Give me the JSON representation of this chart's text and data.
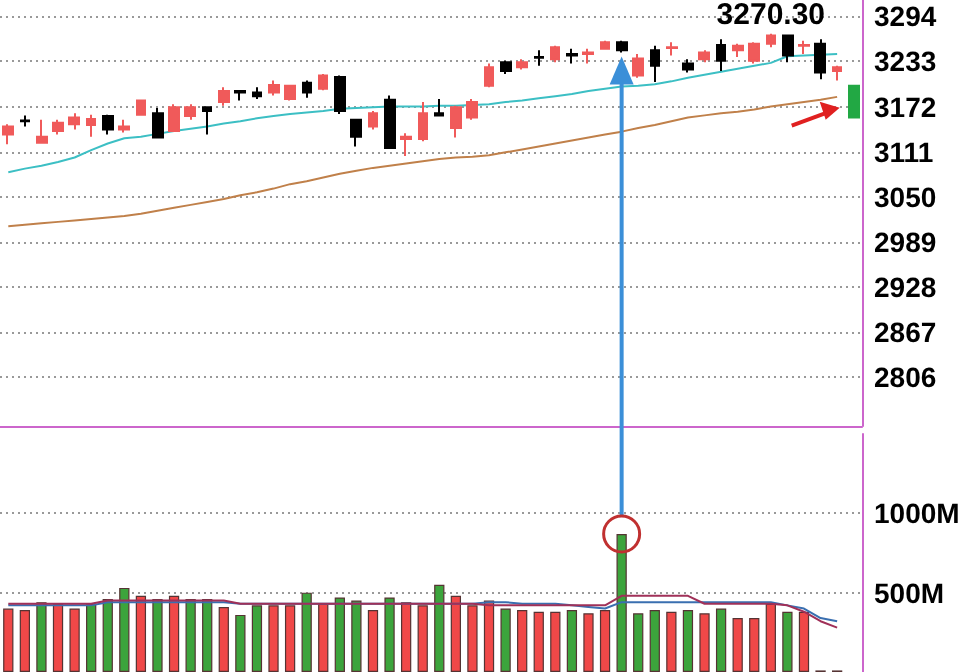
{
  "chart_data": [
    {
      "type": "candlestick",
      "categories": [
        null,
        null,
        null,
        null,
        null,
        null,
        null,
        null,
        null,
        null,
        null,
        null,
        null,
        null,
        null,
        null,
        null,
        null,
        null,
        null,
        null,
        null,
        null,
        null,
        null,
        null,
        null,
        null,
        null,
        null,
        null,
        null,
        null,
        null,
        null,
        null,
        null,
        null,
        null,
        null,
        null,
        null,
        null,
        null,
        null,
        null,
        null,
        null,
        null,
        null,
        null,
        null
      ],
      "ohlc": [
        [
          3134,
          3148,
          3121,
          3145
        ],
        [
          3153,
          3160,
          3145,
          3152
        ],
        [
          3123,
          3154,
          3123,
          3131
        ],
        [
          3139,
          3154,
          3134,
          3150
        ],
        [
          3148,
          3163,
          3141,
          3157
        ],
        [
          3147,
          3161,
          3131,
          3155
        ],
        [
          3159,
          3161,
          3134,
          3141
        ],
        [
          3141,
          3154,
          3137,
          3145
        ],
        [
          3161,
          3181,
          3160,
          3180
        ],
        [
          3163,
          3170,
          3130,
          3130
        ],
        [
          3139,
          3175,
          3139,
          3171
        ],
        [
          3159,
          3175,
          3154,
          3171
        ],
        [
          3171,
          3172,
          3134,
          3166
        ],
        [
          3178,
          3198,
          3173,
          3193
        ],
        [
          3193,
          3193,
          3180,
          3191
        ],
        [
          3191,
          3198,
          3182,
          3186
        ],
        [
          3191,
          3207,
          3187,
          3201
        ],
        [
          3182,
          3201,
          3180,
          3200
        ],
        [
          3204,
          3207,
          3184,
          3191
        ],
        [
          3196,
          3216,
          3194,
          3214
        ],
        [
          3212,
          3214,
          3162,
          3166
        ],
        [
          3154,
          3154,
          3118,
          3131
        ],
        [
          3145,
          3166,
          3141,
          3163
        ],
        [
          3181,
          3187,
          3116,
          3116
        ],
        [
          3128,
          3136,
          3105,
          3131
        ],
        [
          3128,
          3178,
          3125,
          3163
        ],
        [
          3163,
          3182,
          3159,
          3160
        ],
        [
          3143,
          3173,
          3130,
          3171
        ],
        [
          3157,
          3182,
          3154,
          3178
        ],
        [
          3200,
          3230,
          3198,
          3225
        ],
        [
          3232,
          3234,
          3216,
          3220
        ],
        [
          3225,
          3236,
          3222,
          3232
        ],
        [
          3239,
          3248,
          3227,
          3238
        ],
        [
          3236,
          3254,
          3232,
          3252
        ],
        [
          3243,
          3250,
          3230,
          3241
        ],
        [
          3243,
          3250,
          3230,
          3245
        ],
        [
          3250,
          3261,
          3249,
          3259
        ],
        [
          3259,
          3261,
          3245,
          3248
        ],
        [
          3214,
          3243,
          3211,
          3237
        ],
        [
          3248,
          3254,
          3205,
          3227
        ],
        [
          3251,
          3259,
          3241,
          3252
        ],
        [
          3230,
          3236,
          3218,
          3222
        ],
        [
          3236,
          3248,
          3232,
          3245
        ],
        [
          3255,
          3263,
          3220,
          3234
        ],
        [
          3248,
          3257,
          3239,
          3254
        ],
        [
          3234,
          3259,
          3230,
          3257
        ],
        [
          3257,
          3270.3,
          3252,
          3268
        ],
        [
          3268,
          3269,
          3232,
          3241
        ],
        [
          3254,
          3261,
          3243,
          3255
        ],
        [
          3257,
          3263,
          3209,
          3218
        ],
        [
          3220,
          3227,
          3207,
          3225
        ],
        [
          3200,
          3200,
          3157,
          3157
        ]
      ],
      "colors": [
        "#f05a5a",
        "#000000",
        "#f05a5a",
        "#f05a5a",
        "#f05a5a",
        "#f05a5a",
        "#000000",
        "#f05a5a",
        "#f05a5a",
        "#000000",
        "#f05a5a",
        "#f05a5a",
        "#000000",
        "#f05a5a",
        "#000000",
        "#000000",
        "#f05a5a",
        "#f05a5a",
        "#000000",
        "#f05a5a",
        "#000000",
        "#000000",
        "#f05a5a",
        "#000000",
        "#f05a5a",
        "#f05a5a",
        "#000000",
        "#f05a5a",
        "#f05a5a",
        "#f05a5a",
        "#000000",
        "#f05a5a",
        "#000000",
        "#f05a5a",
        "#000000",
        "#f05a5a",
        "#f05a5a",
        "#000000",
        "#f05a5a",
        "#000000",
        "#f05a5a",
        "#000000",
        "#f05a5a",
        "#000000",
        "#f05a5a",
        "#f05a5a",
        "#f05a5a",
        "#000000",
        "#f05a5a",
        "#000000",
        "#f05a5a",
        "#22a844"
      ],
      "series": [
        {
          "type": "line",
          "color": "#3cbfc4",
          "values": [
            3083,
            3088,
            3092,
            3097,
            3103,
            3113,
            3122,
            3129,
            3131,
            3135,
            3139,
            3142,
            3145,
            3149,
            3152,
            3156,
            3159,
            3162,
            3164,
            3166,
            3169,
            3170,
            3171,
            3172,
            3172,
            3172,
            3173,
            3173,
            3174,
            3175,
            3178,
            3180,
            3183,
            3186,
            3189,
            3193,
            3196,
            3199,
            3200,
            3202,
            3206,
            3211,
            3215,
            3219,
            3223,
            3227,
            3231,
            3240,
            3241,
            3242,
            3243,
            null
          ]
        },
        {
          "type": "line",
          "color": "#c0804a",
          "values": [
            3010,
            3012,
            3014,
            3016,
            3018,
            3020,
            3022,
            3024,
            3027,
            3031,
            3035,
            3039,
            3043,
            3047,
            3052,
            3056,
            3061,
            3067,
            3071,
            3076,
            3081,
            3085,
            3089,
            3092,
            3095,
            3098,
            3101,
            3103,
            3104,
            3106,
            3110,
            3114,
            3118,
            3122,
            3126,
            3130,
            3134,
            3138,
            3143,
            3147,
            3152,
            3157,
            3160,
            3163,
            3165,
            3168,
            3172,
            3175,
            3178,
            3181,
            3185,
            null
          ]
        }
      ],
      "ylim": [
        2740,
        3316
      ],
      "yticks": [
        2806,
        2867,
        2928,
        2989,
        3050,
        3111,
        3172,
        3233,
        3294
      ],
      "annotations": [
        {
          "text": "3270.30",
          "y": 3270.3
        }
      ],
      "grid": "y",
      "tick_labels": "y"
    },
    {
      "type": "bar",
      "categories": [
        null,
        null,
        null,
        null,
        null,
        null,
        null,
        null,
        null,
        null,
        null,
        null,
        null,
        null,
        null,
        null,
        null,
        null,
        null,
        null,
        null,
        null,
        null,
        null,
        null,
        null,
        null,
        null,
        null,
        null,
        null,
        null,
        null,
        null,
        null,
        null,
        null,
        null,
        null,
        null,
        null,
        null,
        null,
        null,
        null,
        null,
        null,
        null,
        null,
        null,
        null,
        null
      ],
      "series": [
        {
          "type": "bar",
          "values": [
            400,
            390,
            440,
            430,
            400,
            430,
            460,
            530,
            480,
            460,
            480,
            460,
            460,
            410,
            360,
            420,
            420,
            420,
            500,
            430,
            470,
            450,
            390,
            470,
            440,
            420,
            550,
            480,
            420,
            450,
            400,
            390,
            380,
            380,
            390,
            370,
            390,
            870,
            370,
            390,
            380,
            390,
            370,
            400,
            340,
            340,
            430,
            380,
            380,
            10,
            10,
            null
          ],
          "colors": [
            "#f04848",
            "#f04848",
            "#3ca43c",
            "#f04848",
            "#f04848",
            "#3ca43c",
            "#3ca43c",
            "#3ca43c",
            "#f04848",
            "#3ca43c",
            "#f04848",
            "#3ca43c",
            "#3ca43c",
            "#f04848",
            "#3ca43c",
            "#3ca43c",
            "#f04848",
            "#f04848",
            "#3ca43c",
            "#f04848",
            "#3ca43c",
            "#3ca43c",
            "#f04848",
            "#3ca43c",
            "#f04848",
            "#f04848",
            "#3ca43c",
            "#f04848",
            "#f04848",
            "#f04848",
            "#3ca43c",
            "#f04848",
            "#f04848",
            "#f04848",
            "#3ca43c",
            "#f04848",
            "#f04848",
            "#3ca43c",
            "#3ca43c",
            "#3ca43c",
            "#f04848",
            "#3ca43c",
            "#f04848",
            "#3ca43c",
            "#f04848",
            "#f04848",
            "#f04848",
            "#3ca43c",
            "#f04848",
            "#3ca43c",
            "#f04848",
            "#f04848"
          ]
        },
        {
          "type": "line",
          "color": "#3a6fb0",
          "values": [
            420,
            420,
            420,
            420,
            420,
            420,
            440,
            440,
            440,
            440,
            440,
            440,
            440,
            440,
            430,
            430,
            430,
            430,
            430,
            430,
            430,
            430,
            430,
            430,
            430,
            430,
            430,
            430,
            430,
            440,
            440,
            430,
            430,
            430,
            420,
            410,
            400,
            440,
            440,
            440,
            440,
            440,
            440,
            440,
            440,
            440,
            440,
            420,
            400,
            340,
            320,
            null
          ]
        },
        {
          "type": "line",
          "color": "#a03058",
          "values": [
            430,
            430,
            430,
            430,
            430,
            430,
            450,
            450,
            450,
            450,
            450,
            450,
            450,
            450,
            430,
            430,
            430,
            430,
            430,
            430,
            430,
            430,
            430,
            430,
            430,
            430,
            430,
            430,
            430,
            420,
            420,
            420,
            420,
            420,
            420,
            420,
            420,
            480,
            480,
            480,
            480,
            480,
            430,
            430,
            430,
            430,
            430,
            420,
            380,
            320,
            280,
            null
          ]
        }
      ],
      "ylim": [
        0,
        1500
      ],
      "yticks": [
        {
          "value": 500,
          "label": "500M"
        },
        {
          "value": 1000,
          "label": "1000M"
        }
      ],
      "grid": "y",
      "tick_labels": "y"
    }
  ]
}
